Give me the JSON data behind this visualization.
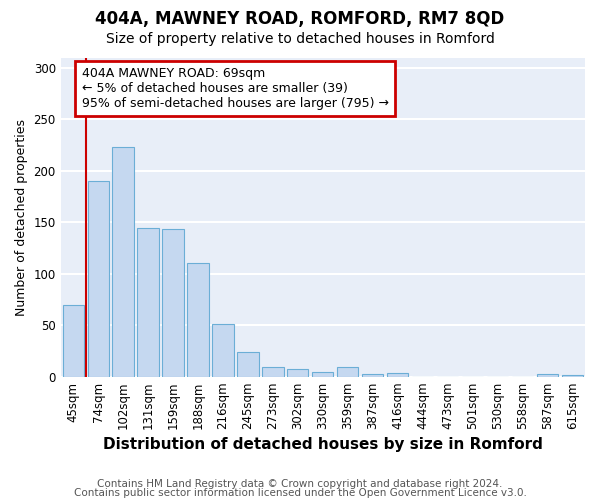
{
  "title1": "404A, MAWNEY ROAD, ROMFORD, RM7 8QD",
  "title2": "Size of property relative to detached houses in Romford",
  "xlabel": "Distribution of detached houses by size in Romford",
  "ylabel": "Number of detached properties",
  "categories": [
    "45sqm",
    "74sqm",
    "102sqm",
    "131sqm",
    "159sqm",
    "188sqm",
    "216sqm",
    "245sqm",
    "273sqm",
    "302sqm",
    "330sqm",
    "359sqm",
    "387sqm",
    "416sqm",
    "444sqm",
    "473sqm",
    "501sqm",
    "530sqm",
    "558sqm",
    "587sqm",
    "615sqm"
  ],
  "values": [
    70,
    190,
    223,
    144,
    143,
    110,
    51,
    24,
    9,
    7,
    5,
    9,
    3,
    4,
    0,
    0,
    0,
    0,
    0,
    3,
    2
  ],
  "bar_color": "#c5d8f0",
  "bar_edge_color": "#6baed6",
  "background_color": "#e8eef8",
  "grid_color": "#ffffff",
  "annotation_box_text": "404A MAWNEY ROAD: 69sqm\n← 5% of detached houses are smaller (39)\n95% of semi-detached houses are larger (795) →",
  "annotation_box_color": "#ffffff",
  "annotation_box_edge_color": "#cc0000",
  "vline_color": "#cc0000",
  "ylim": [
    0,
    310
  ],
  "yticks": [
    0,
    50,
    100,
    150,
    200,
    250,
    300
  ],
  "footer1": "Contains HM Land Registry data © Crown copyright and database right 2024.",
  "footer2": "Contains public sector information licensed under the Open Government Licence v3.0.",
  "title1_fontsize": 12,
  "title2_fontsize": 10,
  "xlabel_fontsize": 11,
  "ylabel_fontsize": 9,
  "tick_fontsize": 8.5,
  "annotation_fontsize": 9,
  "footer_fontsize": 7.5
}
